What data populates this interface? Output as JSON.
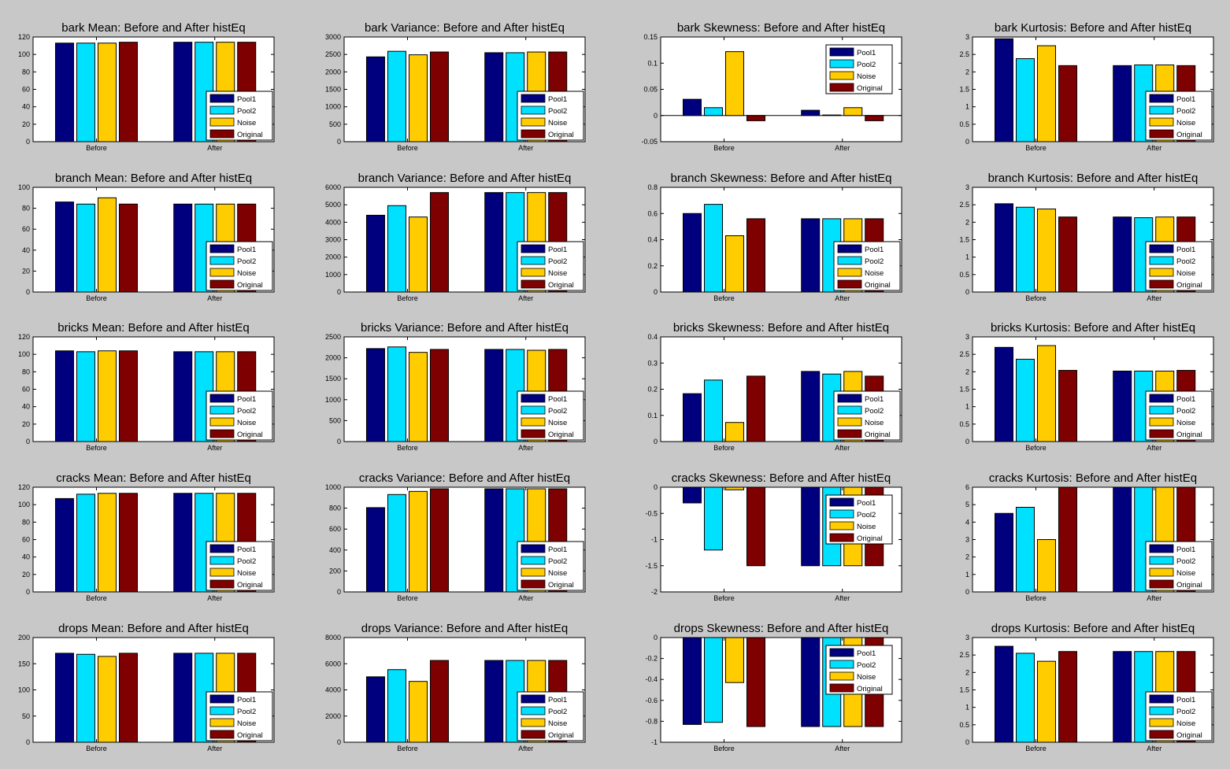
{
  "legend_labels": [
    "Pool1",
    "Pool2",
    "Noise",
    "Original"
  ],
  "colors": {
    "Pool1": "#00007f",
    "Pool2": "#00e0ff",
    "Noise": "#ffcc00",
    "Original": "#7f0000",
    "figure_bg": "#c8c8c8",
    "axes_bg": "#ffffff"
  },
  "chart_data": [
    {
      "type": "bar",
      "title": "bark Mean: Before and After histEq",
      "categories": [
        "Before",
        "After"
      ],
      "ylim": [
        0,
        120
      ],
      "yticks": [
        0,
        20,
        40,
        60,
        80,
        100,
        120
      ],
      "legend_position": "bottom-right",
      "series": [
        {
          "name": "Pool1",
          "values": [
            113,
            114
          ]
        },
        {
          "name": "Pool2",
          "values": [
            113,
            114
          ]
        },
        {
          "name": "Noise",
          "values": [
            113,
            114
          ]
        },
        {
          "name": "Original",
          "values": [
            114,
            114
          ]
        }
      ]
    },
    {
      "type": "bar",
      "title": "bark Variance: Before and After histEq",
      "categories": [
        "Before",
        "After"
      ],
      "ylim": [
        0,
        3000
      ],
      "yticks": [
        0,
        500,
        1000,
        1500,
        2000,
        2500,
        3000
      ],
      "legend_position": "bottom-right",
      "series": [
        {
          "name": "Pool1",
          "values": [
            2430,
            2550
          ]
        },
        {
          "name": "Pool2",
          "values": [
            2590,
            2550
          ]
        },
        {
          "name": "Noise",
          "values": [
            2490,
            2570
          ]
        },
        {
          "name": "Original",
          "values": [
            2570,
            2570
          ]
        }
      ]
    },
    {
      "type": "bar",
      "title": "bark Skewness: Before and After histEq",
      "categories": [
        "Before",
        "After"
      ],
      "ylim": [
        -0.05,
        0.15
      ],
      "yticks": [
        -0.05,
        0,
        0.05,
        0.1,
        0.15
      ],
      "legend_position": "top-right",
      "series": [
        {
          "name": "Pool1",
          "values": [
            0.031,
            0.01
          ]
        },
        {
          "name": "Pool2",
          "values": [
            0.015,
            0.001
          ]
        },
        {
          "name": "Noise",
          "values": [
            0.122,
            0.015
          ]
        },
        {
          "name": "Original",
          "values": [
            -0.01,
            -0.01
          ]
        }
      ]
    },
    {
      "type": "bar",
      "title": "bark Kurtosis: Before and After histEq",
      "categories": [
        "Before",
        "After"
      ],
      "ylim": [
        0,
        3
      ],
      "yticks": [
        0,
        0.5,
        1,
        1.5,
        2,
        2.5,
        3
      ],
      "legend_position": "bottom-right",
      "series": [
        {
          "name": "Pool1",
          "values": [
            2.95,
            2.18
          ]
        },
        {
          "name": "Pool2",
          "values": [
            2.38,
            2.2
          ]
        },
        {
          "name": "Noise",
          "values": [
            2.75,
            2.2
          ]
        },
        {
          "name": "Original",
          "values": [
            2.18,
            2.18
          ]
        }
      ]
    },
    {
      "type": "bar",
      "title": "branch Mean: Before and After histEq",
      "categories": [
        "Before",
        "After"
      ],
      "ylim": [
        0,
        100
      ],
      "yticks": [
        0,
        20,
        40,
        60,
        80,
        100
      ],
      "legend_position": "bottom-right",
      "series": [
        {
          "name": "Pool1",
          "values": [
            86,
            84
          ]
        },
        {
          "name": "Pool2",
          "values": [
            84,
            84
          ]
        },
        {
          "name": "Noise",
          "values": [
            90,
            84
          ]
        },
        {
          "name": "Original",
          "values": [
            84,
            84
          ]
        }
      ]
    },
    {
      "type": "bar",
      "title": "branch Variance: Before and After histEq",
      "categories": [
        "Before",
        "After"
      ],
      "ylim": [
        0,
        6000
      ],
      "yticks": [
        0,
        1000,
        2000,
        3000,
        4000,
        5000,
        6000
      ],
      "legend_position": "bottom-right",
      "series": [
        {
          "name": "Pool1",
          "values": [
            4400,
            5700
          ]
        },
        {
          "name": "Pool2",
          "values": [
            4950,
            5700
          ]
        },
        {
          "name": "Noise",
          "values": [
            4300,
            5700
          ]
        },
        {
          "name": "Original",
          "values": [
            5700,
            5700
          ]
        }
      ]
    },
    {
      "type": "bar",
      "title": "branch Skewness: Before and After histEq",
      "categories": [
        "Before",
        "After"
      ],
      "ylim": [
        0,
        0.8
      ],
      "yticks": [
        0,
        0.2,
        0.4,
        0.6,
        0.8
      ],
      "legend_position": "bottom-right",
      "series": [
        {
          "name": "Pool1",
          "values": [
            0.6,
            0.56
          ]
        },
        {
          "name": "Pool2",
          "values": [
            0.67,
            0.56
          ]
        },
        {
          "name": "Noise",
          "values": [
            0.43,
            0.56
          ]
        },
        {
          "name": "Original",
          "values": [
            0.56,
            0.56
          ]
        }
      ]
    },
    {
      "type": "bar",
      "title": "branch Kurtosis: Before and After histEq",
      "categories": [
        "Before",
        "After"
      ],
      "ylim": [
        0,
        3
      ],
      "yticks": [
        0,
        0.5,
        1,
        1.5,
        2,
        2.5,
        3
      ],
      "legend_position": "bottom-right",
      "series": [
        {
          "name": "Pool1",
          "values": [
            2.53,
            2.15
          ]
        },
        {
          "name": "Pool2",
          "values": [
            2.43,
            2.13
          ]
        },
        {
          "name": "Noise",
          "values": [
            2.38,
            2.15
          ]
        },
        {
          "name": "Original",
          "values": [
            2.15,
            2.15
          ]
        }
      ]
    },
    {
      "type": "bar",
      "title": "bricks Mean: Before and After histEq",
      "categories": [
        "Before",
        "After"
      ],
      "ylim": [
        0,
        120
      ],
      "yticks": [
        0,
        20,
        40,
        60,
        80,
        100,
        120
      ],
      "legend_position": "bottom-right",
      "series": [
        {
          "name": "Pool1",
          "values": [
            104,
            103
          ]
        },
        {
          "name": "Pool2",
          "values": [
            103,
            103
          ]
        },
        {
          "name": "Noise",
          "values": [
            104,
            103
          ]
        },
        {
          "name": "Original",
          "values": [
            104,
            103
          ]
        }
      ]
    },
    {
      "type": "bar",
      "title": "bricks Variance: Before and After histEq",
      "categories": [
        "Before",
        "After"
      ],
      "ylim": [
        0,
        2500
      ],
      "yticks": [
        0,
        500,
        1000,
        1500,
        2000,
        2500
      ],
      "legend_position": "bottom-right",
      "series": [
        {
          "name": "Pool1",
          "values": [
            2220,
            2200
          ]
        },
        {
          "name": "Pool2",
          "values": [
            2260,
            2200
          ]
        },
        {
          "name": "Noise",
          "values": [
            2130,
            2180
          ]
        },
        {
          "name": "Original",
          "values": [
            2200,
            2200
          ]
        }
      ]
    },
    {
      "type": "bar",
      "title": "bricks Skewness: Before and After histEq",
      "categories": [
        "Before",
        "After"
      ],
      "ylim": [
        0,
        0.4
      ],
      "yticks": [
        0,
        0.1,
        0.2,
        0.3,
        0.4
      ],
      "legend_position": "bottom-right",
      "series": [
        {
          "name": "Pool1",
          "values": [
            0.183,
            0.268
          ]
        },
        {
          "name": "Pool2",
          "values": [
            0.235,
            0.258
          ]
        },
        {
          "name": "Noise",
          "values": [
            0.073,
            0.268
          ]
        },
        {
          "name": "Original",
          "values": [
            0.25,
            0.25
          ]
        }
      ]
    },
    {
      "type": "bar",
      "title": "bricks Kurtosis: Before and After histEq",
      "categories": [
        "Before",
        "After"
      ],
      "ylim": [
        0,
        3
      ],
      "yticks": [
        0,
        0.5,
        1,
        1.5,
        2,
        2.5,
        3
      ],
      "legend_position": "bottom-right",
      "series": [
        {
          "name": "Pool1",
          "values": [
            2.7,
            2.02
          ]
        },
        {
          "name": "Pool2",
          "values": [
            2.36,
            2.02
          ]
        },
        {
          "name": "Noise",
          "values": [
            2.75,
            2.02
          ]
        },
        {
          "name": "Original",
          "values": [
            2.04,
            2.04
          ]
        }
      ]
    },
    {
      "type": "bar",
      "title": "cracks Mean: Before and After histEq",
      "categories": [
        "Before",
        "After"
      ],
      "ylim": [
        0,
        120
      ],
      "yticks": [
        0,
        20,
        40,
        60,
        80,
        100,
        120
      ],
      "legend_position": "bottom-right",
      "series": [
        {
          "name": "Pool1",
          "values": [
            107,
            113
          ]
        },
        {
          "name": "Pool2",
          "values": [
            112,
            113
          ]
        },
        {
          "name": "Noise",
          "values": [
            113,
            113
          ]
        },
        {
          "name": "Original",
          "values": [
            113,
            113
          ]
        }
      ]
    },
    {
      "type": "bar",
      "title": "cracks Variance: Before and After histEq",
      "categories": [
        "Before",
        "After"
      ],
      "ylim": [
        0,
        1000
      ],
      "yticks": [
        0,
        200,
        400,
        600,
        800,
        1000
      ],
      "legend_position": "bottom-right",
      "series": [
        {
          "name": "Pool1",
          "values": [
            805,
            985
          ]
        },
        {
          "name": "Pool2",
          "values": [
            930,
            985
          ]
        },
        {
          "name": "Noise",
          "values": [
            960,
            985
          ]
        },
        {
          "name": "Original",
          "values": [
            985,
            985
          ]
        }
      ]
    },
    {
      "type": "bar",
      "title": "cracks Skewness: Before and After histEq",
      "categories": [
        "Before",
        "After"
      ],
      "ylim": [
        -2,
        0
      ],
      "yticks": [
        -2,
        -1.5,
        -1,
        -0.5,
        0
      ],
      "legend_position": "top-right",
      "series": [
        {
          "name": "Pool1",
          "values": [
            -0.3,
            -1.5
          ]
        },
        {
          "name": "Pool2",
          "values": [
            -1.2,
            -1.5
          ]
        },
        {
          "name": "Noise",
          "values": [
            -0.05,
            -1.5
          ]
        },
        {
          "name": "Original",
          "values": [
            -1.5,
            -1.5
          ]
        }
      ]
    },
    {
      "type": "bar",
      "title": "cracks Kurtosis: Before and After histEq",
      "categories": [
        "Before",
        "After"
      ],
      "ylim": [
        0,
        6
      ],
      "yticks": [
        0,
        1,
        2,
        3,
        4,
        5,
        6
      ],
      "legend_position": "bottom-right",
      "series": [
        {
          "name": "Pool1",
          "values": [
            4.5,
            6
          ]
        },
        {
          "name": "Pool2",
          "values": [
            4.85,
            6
          ]
        },
        {
          "name": "Noise",
          "values": [
            3,
            6
          ]
        },
        {
          "name": "Original",
          "values": [
            6,
            6
          ]
        }
      ]
    },
    {
      "type": "bar",
      "title": "drops Mean: Before and After histEq",
      "categories": [
        "Before",
        "After"
      ],
      "ylim": [
        0,
        200
      ],
      "yticks": [
        0,
        50,
        100,
        150,
        200
      ],
      "legend_position": "bottom-right",
      "series": [
        {
          "name": "Pool1",
          "values": [
            170,
            170
          ]
        },
        {
          "name": "Pool2",
          "values": [
            168,
            170
          ]
        },
        {
          "name": "Noise",
          "values": [
            164,
            170
          ]
        },
        {
          "name": "Original",
          "values": [
            170,
            170
          ]
        }
      ]
    },
    {
      "type": "bar",
      "title": "drops Variance: Before and After histEq",
      "categories": [
        "Before",
        "After"
      ],
      "ylim": [
        0,
        8000
      ],
      "yticks": [
        0,
        2000,
        4000,
        6000,
        8000
      ],
      "legend_position": "bottom-right",
      "series": [
        {
          "name": "Pool1",
          "values": [
            5000,
            6250
          ]
        },
        {
          "name": "Pool2",
          "values": [
            5550,
            6250
          ]
        },
        {
          "name": "Noise",
          "values": [
            4650,
            6250
          ]
        },
        {
          "name": "Original",
          "values": [
            6250,
            6250
          ]
        }
      ]
    },
    {
      "type": "bar",
      "title": "drops Skewness: Before and After histEq",
      "categories": [
        "Before",
        "After"
      ],
      "ylim": [
        -1,
        0
      ],
      "yticks": [
        -1,
        -0.8,
        -0.6,
        -0.4,
        -0.2,
        0
      ],
      "legend_position": "top-right",
      "series": [
        {
          "name": "Pool1",
          "values": [
            -0.83,
            -0.85
          ]
        },
        {
          "name": "Pool2",
          "values": [
            -0.81,
            -0.85
          ]
        },
        {
          "name": "Noise",
          "values": [
            -0.43,
            -0.85
          ]
        },
        {
          "name": "Original",
          "values": [
            -0.85,
            -0.85
          ]
        }
      ]
    },
    {
      "type": "bar",
      "title": "drops Kurtosis: Before and After histEq",
      "categories": [
        "Before",
        "After"
      ],
      "ylim": [
        0,
        3
      ],
      "yticks": [
        0,
        0.5,
        1,
        1.5,
        2,
        2.5,
        3
      ],
      "legend_position": "bottom-right",
      "series": [
        {
          "name": "Pool1",
          "values": [
            2.75,
            2.6
          ]
        },
        {
          "name": "Pool2",
          "values": [
            2.55,
            2.6
          ]
        },
        {
          "name": "Noise",
          "values": [
            2.32,
            2.6
          ]
        },
        {
          "name": "Original",
          "values": [
            2.6,
            2.6
          ]
        }
      ]
    }
  ]
}
